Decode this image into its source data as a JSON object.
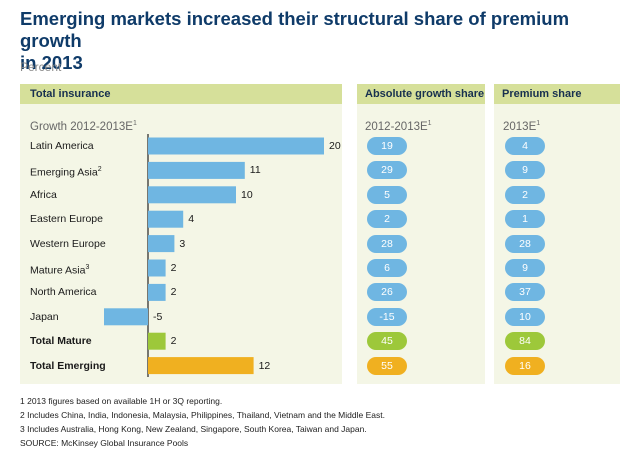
{
  "header": {
    "title_line1": "Emerging markets increased their structural share of premium growth",
    "title_line2": "in 2013",
    "subtitle": "Percent"
  },
  "panels": {
    "total_insurance": {
      "title": "Total insurance",
      "subheader": "Growth 2012-2013E",
      "sup": "1"
    },
    "absolute_growth": {
      "title": "Absolute growth share",
      "subheader": "2012-2013E",
      "sup": "1"
    },
    "premium_share": {
      "title": "Premium share",
      "subheader": "2013E",
      "sup": "1"
    }
  },
  "colors": {
    "blue": "#6fb6e2",
    "green": "#9dc83a",
    "orange": "#f0b020",
    "axis": "#222222"
  },
  "chart_data": {
    "type": "bar",
    "orientation": "horizontal",
    "title": "Emerging markets increased their structural share of premium growth in 2013",
    "unit": "Percent",
    "categories": [
      {
        "label": "Latin America",
        "sup": "",
        "growth": "20",
        "growth_value": 20,
        "abs_share": "19",
        "prem_share": "4",
        "color": "blue",
        "bold": false
      },
      {
        "label": "Emerging Asia",
        "sup": "2",
        "growth": "11",
        "growth_value": 11,
        "abs_share": "29",
        "prem_share": "9",
        "color": "blue",
        "bold": false
      },
      {
        "label": "Africa",
        "sup": "",
        "growth": "10",
        "growth_value": 10,
        "abs_share": "5",
        "prem_share": "2",
        "color": "blue",
        "bold": false
      },
      {
        "label": "Eastern Europe",
        "sup": "",
        "growth": "4",
        "growth_value": 4,
        "abs_share": "2",
        "prem_share": "1",
        "color": "blue",
        "bold": false
      },
      {
        "label": "Western Europe",
        "sup": "",
        "growth": "3",
        "growth_value": 3,
        "abs_share": "28",
        "prem_share": "28",
        "color": "blue",
        "bold": false
      },
      {
        "label": "Mature Asia",
        "sup": "3",
        "growth": "2",
        "growth_value": 2,
        "abs_share": "6",
        "prem_share": "9",
        "color": "blue",
        "bold": false
      },
      {
        "label": "North America",
        "sup": "",
        "growth": "2",
        "growth_value": 2,
        "abs_share": "26",
        "prem_share": "37",
        "color": "blue",
        "bold": false
      },
      {
        "label": "Japan",
        "sup": "",
        "growth": "-5",
        "growth_value": -5,
        "abs_share": "-15",
        "prem_share": "10",
        "color": "blue",
        "bold": false
      },
      {
        "label": "Total Mature",
        "sup": "",
        "growth": "2",
        "growth_value": 2,
        "abs_share": "45",
        "prem_share": "84",
        "color": "green",
        "bold": true
      },
      {
        "label": "Total Emerging",
        "sup": "",
        "growth": "12",
        "growth_value": 12,
        "abs_share": "55",
        "prem_share": "16",
        "color": "orange",
        "bold": true
      }
    ],
    "xlim": [
      -5,
      20
    ]
  },
  "footnotes": [
    "1 2013 figures based on available 1H or 3Q reporting.",
    "2 Includes China, India, Indonesia, Malaysia, Philippines, Thailand, Vietnam and the Middle East.",
    "3 Includes Australia, Hong Kong, New Zealand, Singapore, South Korea, Taiwan and Japan.",
    "SOURCE: McKinsey Global Insurance Pools"
  ]
}
